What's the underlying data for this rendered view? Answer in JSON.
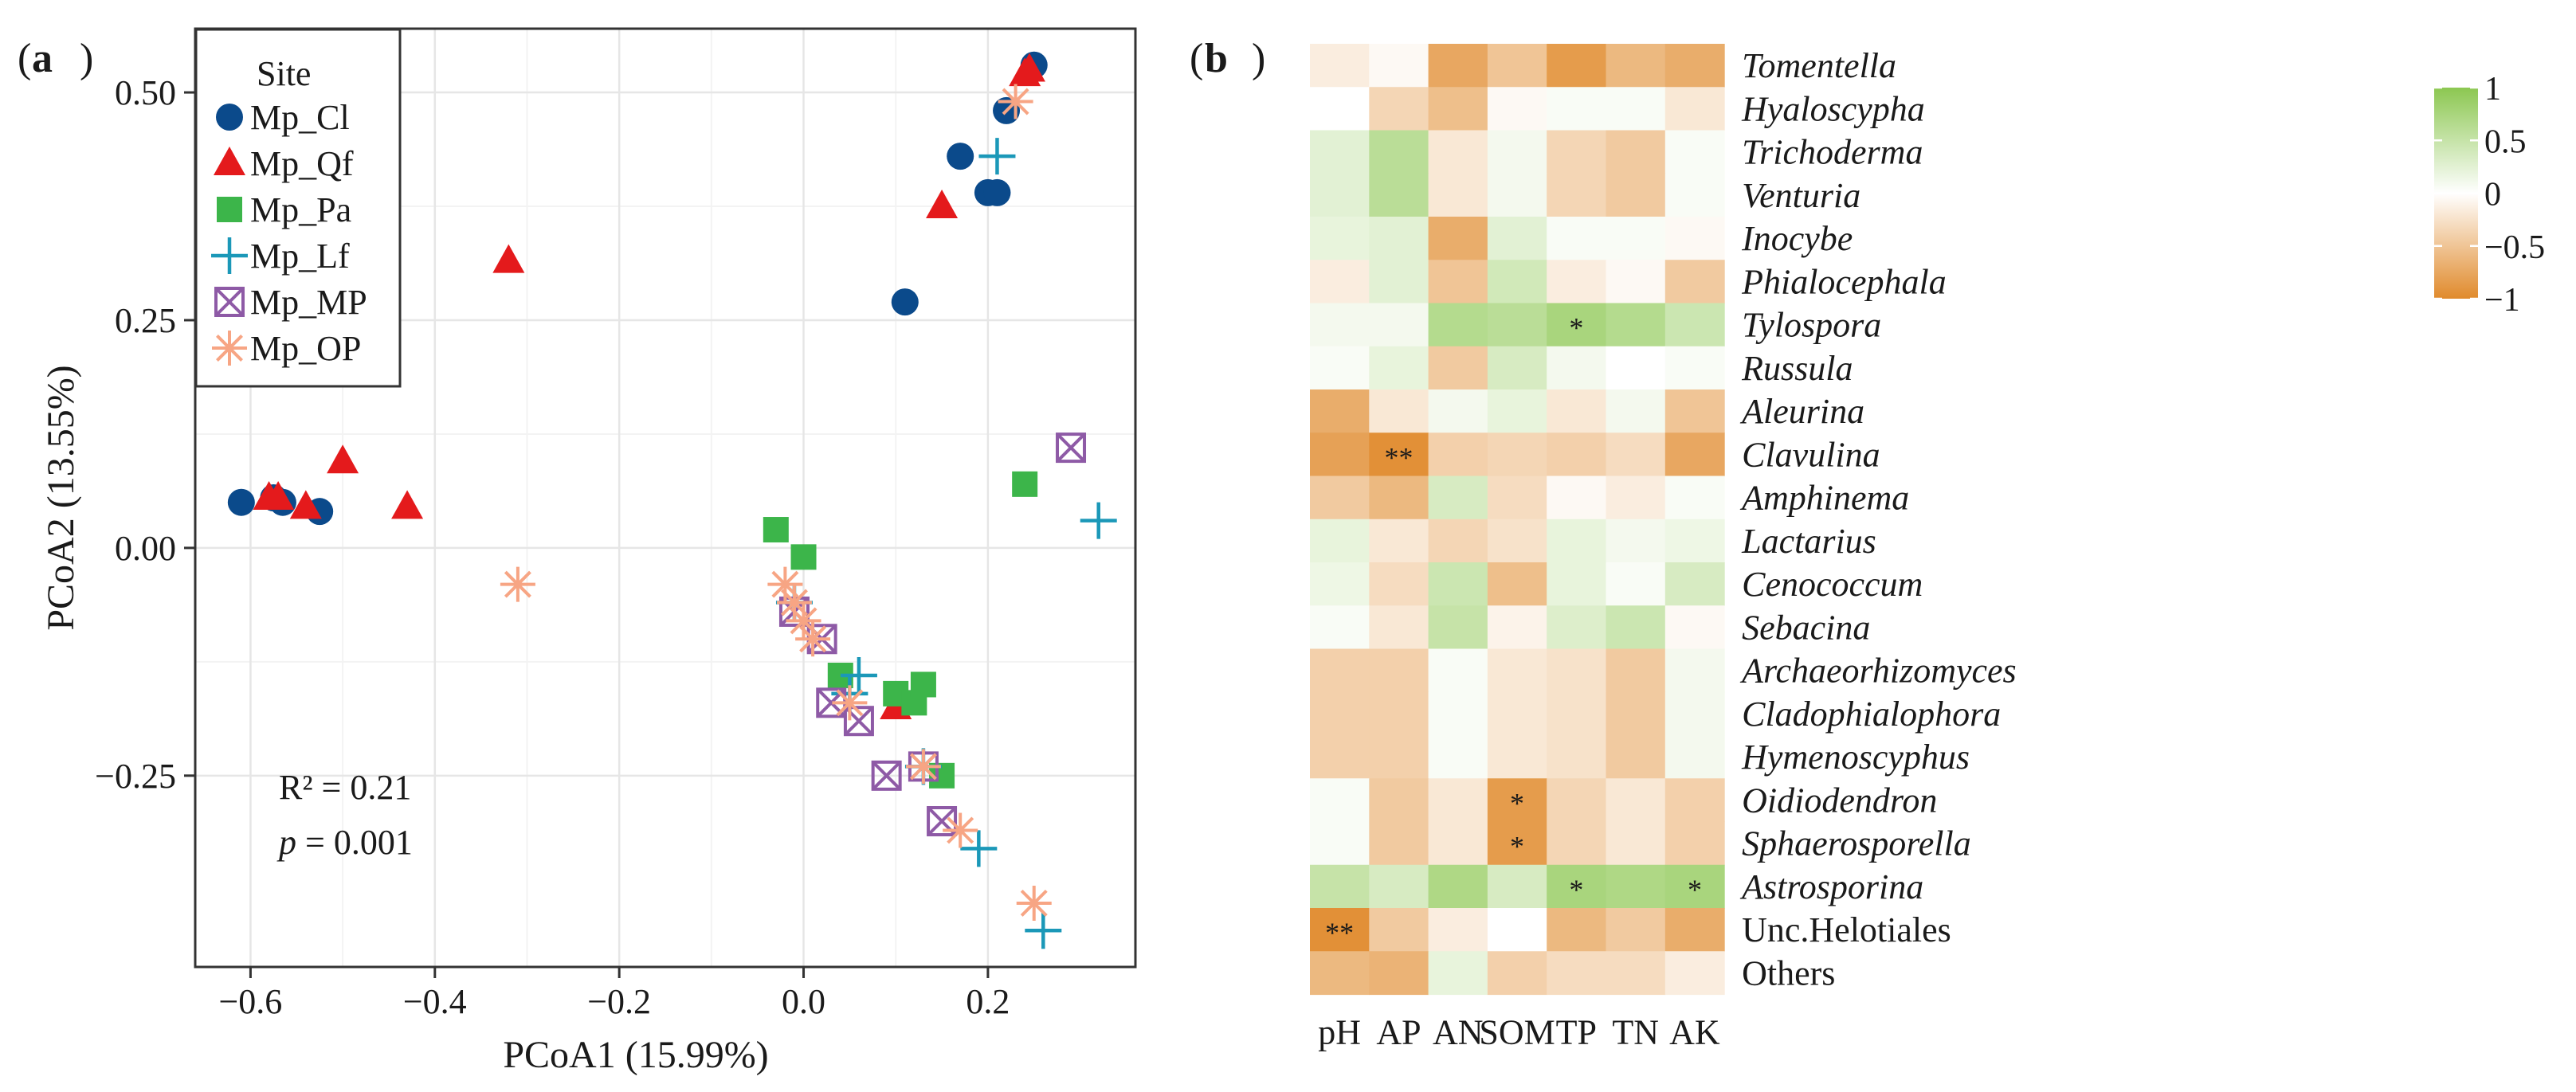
{
  "chart_data": [
    {
      "panel_label": "a",
      "type": "scatter",
      "xlabel": "PCoA1 (15.99%)",
      "ylabel": "PCoA2 (13.55%)",
      "xlim": [
        -0.66,
        0.36
      ],
      "ylim": [
        -0.46,
        0.57
      ],
      "xticks": [
        -0.6,
        -0.4,
        -0.2,
        0.0,
        0.2
      ],
      "xtick_labels": [
        "−0.6",
        "−0.4",
        "−0.2",
        "0.0",
        "0.2"
      ],
      "yticks": [
        -0.25,
        0.0,
        0.25,
        0.5
      ],
      "ytick_labels": [
        "−0.25",
        "0.00",
        "0.25",
        "0.50"
      ],
      "legend_title": "Site",
      "legend_position": "top-left",
      "annotation": {
        "r2_label": "R² = 0.21",
        "p_symbol": "p",
        "p_value": " = 0.001"
      },
      "series": [
        {
          "name": "Mp_Cl",
          "marker": "circle",
          "color": "#0b4a8b",
          "points": [
            [
              -0.61,
              0.05
            ],
            [
              -0.575,
              0.055
            ],
            [
              -0.565,
              0.05
            ],
            [
              -0.525,
              0.04
            ],
            [
              0.11,
              0.27
            ],
            [
              0.17,
              0.43
            ],
            [
              0.2,
              0.39
            ],
            [
              0.21,
              0.39
            ],
            [
              0.22,
              0.48
            ],
            [
              0.25,
              0.53
            ]
          ]
        },
        {
          "name": "Mp_Qf",
          "marker": "triangle",
          "color": "#e41a1c",
          "points": [
            [
              -0.58,
              0.055
            ],
            [
              -0.57,
              0.055
            ],
            [
              -0.54,
              0.045
            ],
            [
              -0.5,
              0.095
            ],
            [
              -0.43,
              0.045
            ],
            [
              -0.32,
              0.315
            ],
            [
              0.1,
              -0.175
            ],
            [
              0.15,
              0.375
            ],
            [
              0.24,
              0.52
            ],
            [
              0.245,
              0.525
            ]
          ]
        },
        {
          "name": "Mp_Pa",
          "marker": "square",
          "color": "#3cb54a",
          "points": [
            [
              -0.03,
              0.02
            ],
            [
              0.0,
              -0.01
            ],
            [
              0.04,
              -0.14
            ],
            [
              0.1,
              -0.16
            ],
            [
              0.12,
              -0.17
            ],
            [
              0.13,
              -0.15
            ],
            [
              0.15,
              -0.25
            ],
            [
              0.24,
              0.07
            ]
          ]
        },
        {
          "name": "Mp_Lf",
          "marker": "plus",
          "color": "#1b98b8",
          "points": [
            [
              -0.01,
              -0.06
            ],
            [
              0.05,
              -0.16
            ],
            [
              0.06,
              -0.14
            ],
            [
              0.13,
              -0.24
            ],
            [
              0.19,
              -0.33
            ],
            [
              0.21,
              0.43
            ],
            [
              0.26,
              -0.42
            ],
            [
              0.32,
              0.03
            ]
          ]
        },
        {
          "name": "Mp_MP",
          "marker": "boxcross",
          "color": "#8e5aa6",
          "points": [
            [
              -0.01,
              -0.07
            ],
            [
              0.02,
              -0.1
            ],
            [
              0.03,
              -0.17
            ],
            [
              0.06,
              -0.19
            ],
            [
              0.09,
              -0.25
            ],
            [
              0.13,
              -0.24
            ],
            [
              0.15,
              -0.3
            ],
            [
              0.29,
              0.11
            ]
          ]
        },
        {
          "name": "Mp_OP",
          "marker": "asterisk",
          "color": "#f7a584",
          "points": [
            [
              -0.31,
              -0.04
            ],
            [
              -0.02,
              -0.04
            ],
            [
              -0.01,
              -0.06
            ],
            [
              0.0,
              -0.08
            ],
            [
              0.01,
              -0.1
            ],
            [
              0.05,
              -0.17
            ],
            [
              0.13,
              -0.24
            ],
            [
              0.17,
              -0.31
            ],
            [
              0.23,
              0.49
            ],
            [
              0.25,
              -0.39
            ]
          ]
        }
      ]
    },
    {
      "panel_label": "b",
      "type": "heatmap",
      "columns": [
        "pH",
        "AP",
        "AN",
        "SOM",
        "TP",
        "TN",
        "AK"
      ],
      "rows": [
        {
          "name": "Tomentella",
          "italic": true,
          "values": [
            -0.15,
            -0.05,
            -0.75,
            -0.5,
            -0.85,
            -0.6,
            -0.7
          ],
          "stars": [
            "",
            "",
            "",
            "",
            "",
            "",
            ""
          ]
        },
        {
          "name": "Hyaloscypha",
          "italic": true,
          "values": [
            0.0,
            -0.35,
            -0.55,
            -0.05,
            0.05,
            0.05,
            -0.2
          ],
          "stars": [
            "",
            "",
            "",
            "",
            "",
            "",
            ""
          ]
        },
        {
          "name": "Trichoderma",
          "italic": true,
          "values": [
            0.25,
            0.6,
            -0.2,
            0.1,
            -0.35,
            -0.45,
            0.05
          ],
          "stars": [
            "",
            "",
            "",
            "",
            "",
            "",
            ""
          ]
        },
        {
          "name": "Venturia",
          "italic": true,
          "values": [
            0.25,
            0.6,
            -0.2,
            0.1,
            -0.35,
            -0.45,
            0.05
          ],
          "stars": [
            "",
            "",
            "",
            "",
            "",
            "",
            ""
          ]
        },
        {
          "name": "Inocybe",
          "italic": true,
          "values": [
            0.2,
            0.25,
            -0.7,
            0.25,
            0.05,
            0.05,
            -0.05
          ],
          "stars": [
            "",
            "",
            "",
            "",
            "",
            "",
            ""
          ]
        },
        {
          "name": "Phialocephala",
          "italic": true,
          "values": [
            -0.15,
            0.25,
            -0.5,
            0.4,
            -0.15,
            -0.05,
            -0.45
          ],
          "stars": [
            "",
            "",
            "",
            "",
            "",
            "",
            ""
          ]
        },
        {
          "name": "Tylospora",
          "italic": true,
          "values": [
            0.1,
            0.1,
            0.65,
            0.6,
            0.75,
            0.65,
            0.45
          ],
          "stars": [
            "",
            "",
            "",
            "",
            "*",
            "",
            ""
          ]
        },
        {
          "name": "Russula",
          "italic": true,
          "values": [
            0.05,
            0.2,
            -0.45,
            0.35,
            0.1,
            0.0,
            0.05
          ],
          "stars": [
            "",
            "",
            "",
            "",
            "",
            "",
            ""
          ]
        },
        {
          "name": "Aleurina",
          "italic": true,
          "values": [
            -0.7,
            -0.2,
            0.1,
            0.2,
            -0.2,
            0.1,
            -0.5
          ],
          "stars": [
            "",
            "",
            "",
            "",
            "",
            "",
            ""
          ]
        },
        {
          "name": "Clavulina",
          "italic": true,
          "values": [
            -0.8,
            -0.95,
            -0.4,
            -0.35,
            -0.4,
            -0.3,
            -0.75
          ],
          "stars": [
            "",
            "**",
            "",
            "",
            "",
            "",
            ""
          ]
        },
        {
          "name": "Amphinema",
          "italic": true,
          "values": [
            -0.45,
            -0.6,
            0.35,
            -0.3,
            -0.05,
            -0.15,
            0.05
          ],
          "stars": [
            "",
            "",
            "",
            "",
            "",
            "",
            ""
          ]
        },
        {
          "name": "Lactarius",
          "italic": true,
          "values": [
            0.2,
            -0.2,
            -0.35,
            -0.25,
            0.2,
            0.1,
            0.15
          ],
          "stars": [
            "",
            "",
            "",
            "",
            "",
            "",
            ""
          ]
        },
        {
          "name": "Cenococcum",
          "italic": true,
          "values": [
            0.15,
            -0.3,
            0.45,
            -0.55,
            0.2,
            0.05,
            0.35
          ],
          "stars": [
            "",
            "",
            "",
            "",
            "",
            "",
            ""
          ]
        },
        {
          "name": "Sebacina",
          "italic": true,
          "values": [
            0.05,
            -0.2,
            0.5,
            -0.1,
            0.3,
            0.45,
            -0.05
          ],
          "stars": [
            "",
            "",
            "",
            "",
            "",
            "",
            ""
          ]
        },
        {
          "name": "Archaeorhizomyces",
          "italic": true,
          "values": [
            -0.4,
            -0.4,
            0.05,
            -0.2,
            -0.25,
            -0.45,
            0.1
          ],
          "stars": [
            "",
            "",
            "",
            "",
            "",
            "",
            ""
          ]
        },
        {
          "name": "Cladophialophora",
          "italic": true,
          "values": [
            -0.4,
            -0.4,
            0.05,
            -0.2,
            -0.25,
            -0.45,
            0.1
          ],
          "stars": [
            "",
            "",
            "",
            "",
            "",
            "",
            ""
          ]
        },
        {
          "name": "Hymenoscyphus",
          "italic": true,
          "values": [
            -0.4,
            -0.4,
            0.05,
            -0.2,
            -0.25,
            -0.45,
            0.1
          ],
          "stars": [
            "",
            "",
            "",
            "",
            "",
            "",
            ""
          ]
        },
        {
          "name": "Oidiodendron",
          "italic": true,
          "values": [
            0.05,
            -0.45,
            -0.2,
            -0.85,
            -0.35,
            -0.2,
            -0.4
          ],
          "stars": [
            "",
            "",
            "",
            "*",
            "",
            "",
            ""
          ]
        },
        {
          "name": "Sphaerosporella",
          "italic": true,
          "values": [
            0.05,
            -0.45,
            -0.2,
            -0.85,
            -0.35,
            -0.2,
            -0.4
          ],
          "stars": [
            "",
            "",
            "",
            "*",
            "",
            "",
            ""
          ]
        },
        {
          "name": "Astrosporina",
          "italic": true,
          "values": [
            0.5,
            0.35,
            0.7,
            0.35,
            0.75,
            0.7,
            0.75
          ],
          "stars": [
            "",
            "",
            "",
            "",
            "*",
            "",
            "*"
          ]
        },
        {
          "name": "Unc.Helotiales",
          "italic": false,
          "values": [
            -0.95,
            -0.45,
            -0.15,
            0.0,
            -0.6,
            -0.45,
            -0.7
          ],
          "stars": [
            "**",
            "",
            "",
            "",
            "",
            "",
            ""
          ]
        },
        {
          "name": "Others",
          "italic": false,
          "values": [
            -0.6,
            -0.65,
            0.2,
            -0.4,
            -0.3,
            -0.3,
            -0.15
          ],
          "stars": [
            "",
            "",
            "",
            "",
            "",
            "",
            ""
          ]
        }
      ],
      "colorbar": {
        "min": -1,
        "max": 1,
        "ticks": [
          1,
          0.5,
          0,
          -0.5,
          -1
        ],
        "tick_labels": [
          "1",
          "0.5",
          "0",
          "−0.5",
          "−1"
        ],
        "low_color": "#e08a2c",
        "mid_color": "#ffffff",
        "high_color": "#8cc751"
      }
    }
  ]
}
